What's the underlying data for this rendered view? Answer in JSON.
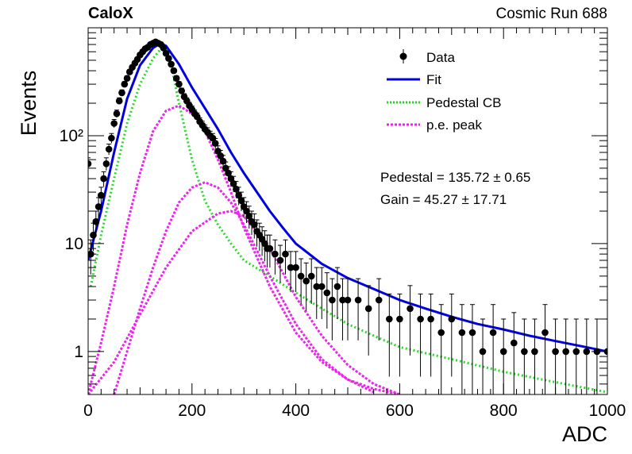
{
  "header": {
    "experiment": "CaloX",
    "run": "Cosmic Run 688"
  },
  "legend": {
    "data": "Data",
    "fit": "Fit",
    "pedestal_cb": "Pedestal CB",
    "pe_peak": "p.e. peak"
  },
  "fit_results": {
    "pedestal": "Pedestal = 135.72 ± 0.65",
    "gain": "Gain = 45.27 ± 17.71"
  },
  "chart_data": {
    "type": "scatter",
    "xlabel": "ADC",
    "ylabel": "Events",
    "xlim": [
      0,
      1000
    ],
    "ylim": [
      0.4,
      1000
    ],
    "yscale": "log",
    "x_ticks": [
      "0",
      "200",
      "400",
      "600",
      "800",
      "1000"
    ],
    "y_ticks": [
      "1",
      "10",
      "10²"
    ],
    "grid": false,
    "legend_position": "top-right",
    "colors": {
      "data": "#000000",
      "fit": "#0000dd",
      "pedestal": "#22dd22",
      "pe": "#ee22ee"
    },
    "series": [
      {
        "name": "Data",
        "style": "points-with-error-bars",
        "x": [
          0,
          5,
          10,
          15,
          20,
          25,
          30,
          35,
          40,
          45,
          50,
          55,
          60,
          65,
          70,
          75,
          80,
          85,
          90,
          95,
          100,
          105,
          110,
          115,
          120,
          125,
          130,
          135,
          140,
          145,
          150,
          155,
          160,
          165,
          170,
          175,
          180,
          185,
          190,
          195,
          200,
          205,
          210,
          215,
          220,
          225,
          230,
          235,
          240,
          245,
          250,
          255,
          260,
          265,
          270,
          275,
          280,
          285,
          290,
          295,
          300,
          305,
          310,
          315,
          320,
          325,
          330,
          335,
          340,
          345,
          350,
          360,
          370,
          380,
          390,
          400,
          410,
          420,
          430,
          440,
          450,
          460,
          470,
          480,
          490,
          500,
          520,
          540,
          560,
          580,
          600,
          620,
          640,
          660,
          680,
          700,
          720,
          740,
          760,
          780,
          800,
          820,
          840,
          860,
          880,
          900,
          920,
          940,
          960,
          980,
          1000
        ],
        "y": [
          55,
          8,
          12,
          16,
          22,
          28,
          40,
          55,
          75,
          95,
          130,
          160,
          210,
          250,
          300,
          340,
          390,
          430,
          470,
          510,
          560,
          600,
          640,
          660,
          700,
          720,
          740,
          720,
          700,
          650,
          580,
          520,
          460,
          400,
          340,
          300,
          260,
          230,
          210,
          190,
          175,
          160,
          150,
          135,
          125,
          115,
          108,
          100,
          95,
          85,
          72,
          65,
          58,
          50,
          45,
          40,
          36,
          32,
          28,
          25,
          22,
          20,
          18,
          16,
          15,
          13,
          12,
          11,
          10,
          9,
          9,
          8,
          7,
          8,
          6,
          6,
          5,
          4.5,
          5,
          4,
          4,
          3.5,
          3,
          4,
          3,
          3,
          3,
          2.5,
          3,
          2,
          2,
          2.5,
          2,
          2,
          1.5,
          2,
          1.5,
          1.5,
          1,
          1.5,
          1,
          1.2,
          1,
          1,
          1.5,
          1,
          1,
          1,
          1,
          1,
          1
        ]
      },
      {
        "name": "Fit",
        "style": "line",
        "x": [
          0,
          25,
          50,
          75,
          100,
          125,
          140,
          150,
          175,
          200,
          225,
          250,
          275,
          300,
          325,
          350,
          375,
          400,
          450,
          500,
          550,
          600,
          650,
          700,
          750,
          800,
          850,
          900,
          950,
          1000
        ],
        "y": [
          7,
          20,
          70,
          220,
          450,
          650,
          720,
          680,
          460,
          280,
          180,
          115,
          70,
          45,
          30,
          20,
          14,
          10,
          6.5,
          4.8,
          3.8,
          3,
          2.5,
          2.1,
          1.8,
          1.6,
          1.4,
          1.25,
          1.12,
          1
        ]
      },
      {
        "name": "Pedestal CB",
        "style": "dotted",
        "x": [
          5,
          25,
          50,
          75,
          100,
          125,
          140,
          150,
          160,
          175,
          200,
          225,
          250,
          275,
          300,
          350,
          400,
          450,
          500,
          550,
          600,
          700,
          800,
          900,
          1000
        ],
        "y": [
          4,
          12,
          40,
          130,
          300,
          520,
          640,
          620,
          450,
          200,
          60,
          25,
          15,
          10,
          7,
          5,
          3.5,
          2.5,
          1.8,
          1.4,
          1.1,
          0.85,
          0.65,
          0.52,
          0.42
        ]
      },
      {
        "name": "p.e. peak 1",
        "style": "dotted",
        "x": [
          0,
          25,
          50,
          75,
          100,
          125,
          150,
          175,
          200,
          225,
          250,
          275,
          300,
          350,
          400,
          450,
          500,
          550,
          600
        ],
        "y": [
          0.4,
          1.2,
          4,
          15,
          45,
          110,
          170,
          190,
          160,
          110,
          60,
          30,
          14,
          4,
          1.5,
          0.8,
          0.55,
          0.45,
          0.4
        ]
      },
      {
        "name": "p.e. peak 2",
        "style": "dotted",
        "x": [
          50,
          75,
          100,
          125,
          150,
          175,
          200,
          225,
          250,
          275,
          300,
          350,
          400,
          450,
          500,
          550
        ],
        "y": [
          0.4,
          1,
          2.5,
          6,
          13,
          24,
          33,
          37,
          33,
          24,
          15,
          5,
          1.8,
          0.85,
          0.55,
          0.42
        ]
      },
      {
        "name": "p.e. peak 3",
        "style": "dotted",
        "x": [
          0,
          50,
          100,
          150,
          200,
          250,
          275,
          300,
          350,
          400,
          450,
          500,
          550,
          600
        ],
        "y": [
          0.4,
          0.8,
          2.2,
          6,
          13,
          19,
          20,
          18,
          9,
          3.2,
          1.4,
          0.75,
          0.5,
          0.4
        ]
      }
    ]
  }
}
